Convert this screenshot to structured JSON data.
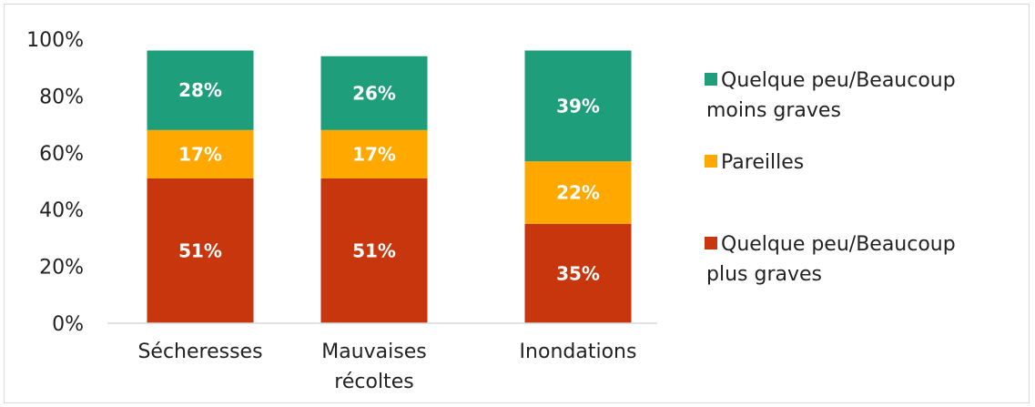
{
  "chart_data": {
    "type": "bar",
    "stacked": true,
    "categories": [
      [
        "Sécheresses"
      ],
      [
        "Mauvaises",
        "récoltes"
      ],
      [
        "Inondations"
      ]
    ],
    "series": [
      {
        "name": "Quelque peu/Beaucoup plus graves",
        "legend_lines": [
          "Quelque peu/Beaucoup",
          "plus graves"
        ],
        "color": "#C8360E",
        "values": [
          51,
          51,
          35
        ],
        "labels": [
          "51%",
          "51%",
          "35%"
        ]
      },
      {
        "name": "Pareilles",
        "legend_lines": [
          "Pareilles"
        ],
        "color": "#FFA800",
        "values": [
          17,
          17,
          22
        ],
        "labels": [
          "17%",
          "17%",
          "22%"
        ]
      },
      {
        "name": "Quelque peu/Beaucoup moins graves",
        "legend_lines": [
          "Quelque peu/Beaucoup",
          "moins graves"
        ],
        "color": "#1E9E7A",
        "values": [
          28,
          26,
          39
        ],
        "labels": [
          "28%",
          "26%",
          "39%"
        ]
      }
    ],
    "ylim": [
      0,
      100
    ],
    "yticks": [
      "0%",
      "20%",
      "40%",
      "60%",
      "80%",
      "100%"
    ],
    "legend_position": "right",
    "grid": false
  }
}
